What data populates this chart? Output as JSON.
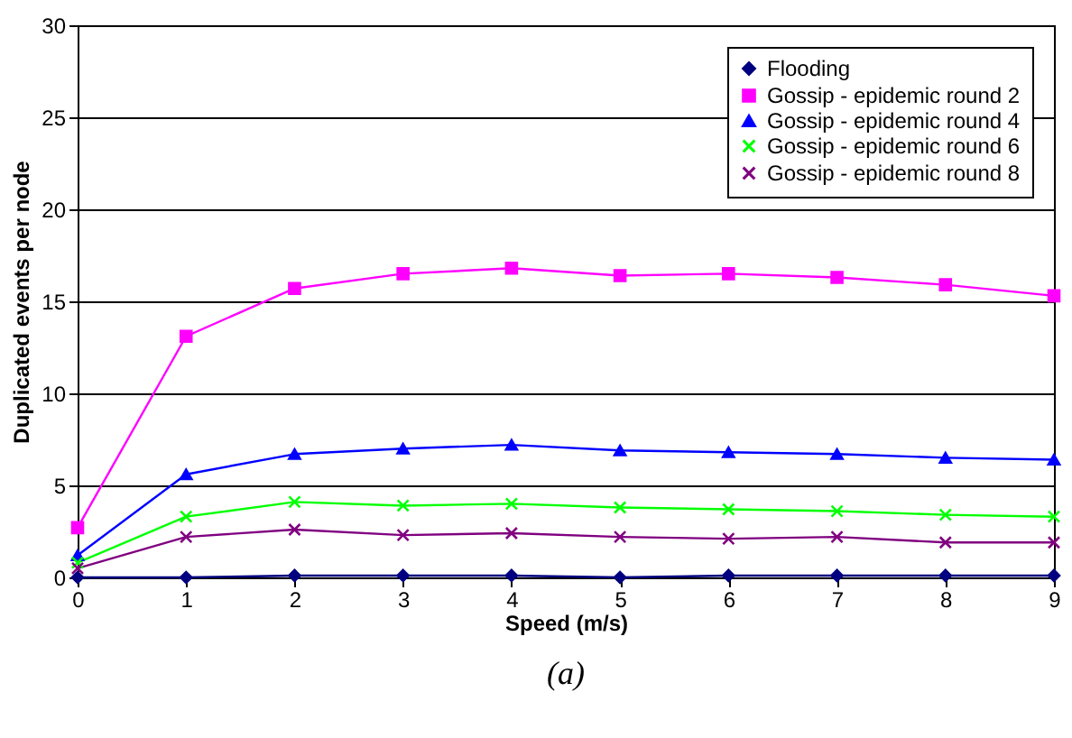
{
  "chart_data": {
    "type": "line",
    "xlabel": "Speed (m/s)",
    "ylabel": "Duplicated events per node",
    "annotations": [
      "(a)"
    ],
    "x": [
      0,
      1,
      2,
      3,
      4,
      5,
      6,
      7,
      8,
      9
    ],
    "xlim": [
      0,
      9
    ],
    "xticks": [
      0,
      1,
      2,
      3,
      4,
      5,
      6,
      7,
      8,
      9
    ],
    "ylim": [
      0,
      30
    ],
    "yticks": [
      0,
      5,
      10,
      15,
      20,
      25,
      30
    ],
    "grid": "y",
    "legend": "top right",
    "series": [
      {
        "name": "Flooding",
        "color": "#000080",
        "marker": "diamond",
        "values": [
          0,
          0,
          0.1,
          0.1,
          0.1,
          0,
          0.1,
          0.1,
          0.1,
          0.1
        ]
      },
      {
        "name": "Gossip - epidemic round 2",
        "color": "#ff00ff",
        "marker": "square",
        "values": [
          2.7,
          13.1,
          15.7,
          16.5,
          16.8,
          16.4,
          16.5,
          16.3,
          15.9,
          15.3
        ]
      },
      {
        "name": "Gossip - epidemic round 4",
        "color": "#0000ff",
        "marker": "triangle",
        "values": [
          1.2,
          5.6,
          6.7,
          7.0,
          7.2,
          6.9,
          6.8,
          6.7,
          6.5,
          6.4
        ]
      },
      {
        "name": "Gossip - epidemic round 6",
        "color": "#00ff00",
        "marker": "cross",
        "values": [
          0.8,
          3.3,
          4.1,
          3.9,
          4.0,
          3.8,
          3.7,
          3.6,
          3.4,
          3.3
        ]
      },
      {
        "name": "Gossip - epidemic round 8",
        "color": "#800080",
        "marker": "cross",
        "values": [
          0.5,
          2.2,
          2.6,
          2.3,
          2.4,
          2.2,
          2.1,
          2.2,
          1.9,
          1.9
        ]
      }
    ]
  }
}
